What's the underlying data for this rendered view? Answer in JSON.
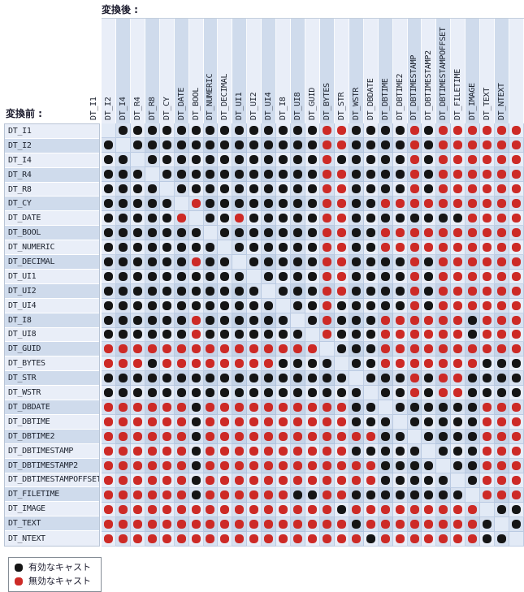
{
  "labels": {
    "after": "変換後 :",
    "before": "変換前 :"
  },
  "legend": {
    "valid": "有効なキャスト",
    "invalid": "無効なキャスト"
  },
  "colors": {
    "valid_dot": "#151515",
    "invalid_dot": "#cd2a26",
    "stripe_light": "#e9eef8",
    "stripe_dark": "#cfdbec",
    "diagonal_cell": "#e2eaf6"
  },
  "chart_data": {
    "type": "heatmap",
    "x_axis_label": "変換後 :",
    "y_axis_label": "変換前 :",
    "legend_entries": [
      {
        "symbol": "black-dot",
        "label": "有効なキャスト"
      },
      {
        "symbol": "red-dot",
        "label": "無効なキャスト"
      }
    ],
    "cell_encoding": {
      "b": "有効なキャスト (valid cast, black dot)",
      "r": "無効なキャスト (invalid cast, red dot)",
      "-": "diagonal, same type, empty"
    },
    "categories": [
      "DT_I1",
      "DT_I2",
      "DT_I4",
      "DT_R4",
      "DT_R8",
      "DT_CY",
      "DT_DATE",
      "DT_BOOL",
      "DT_NUMERIC",
      "DT_DECIMAL",
      "DT_UI1",
      "DT_UI2",
      "DT_UI4",
      "DT_I8",
      "DT_UI8",
      "DT_GUID",
      "DT_BYTES",
      "DT_STR",
      "DT_WSTR",
      "DT_DBDATE",
      "DT_DBTIME",
      "DT_DBTIME2",
      "DT_DBTIMESTAMP",
      "DT_DBTIMESTAMP2",
      "DT_DBTIMESTAMPOFFSET",
      "DT_FILETIME",
      "DT_IMAGE",
      "DT_TEXT",
      "DT_NTEXT"
    ],
    "rows": [
      "-bbbbbbbbbbbbbbrrbbbbrbrrrrrr",
      "b-bbbbbbbbbbbbbrrbbbbrbrrrrrr",
      "bb-bbbbbbbbbbbbrbbbbbrbrrrrrr",
      "bbb-bbbbbbbbbbbrrbbbbrbrrrrrr",
      "bbbb-bbbbbbbbbbrrbbbbrbrrrrrr",
      "bbbbb-rbbbbbbbbrrbbrrrrrrrrrr",
      "bbbbbr-bbrbbbbbrrbbbbbbbbrrrr",
      "bbbbbbb-bbbbbbbrrbbrrrrrrrrrr",
      "bbbbbbbb-bbbbbbrrbbrrrrrrrrrr",
      "bbbbbbrbb-bbbbbrrbbbbrbrrrrrr",
      "bbbbbbbbbb-bbbbrrbbbbrbrrrrrr",
      "bbbbbbbbbbb-bbbrrbbbbrbrrrrrr",
      "bbbbbbbbbbbb-bbrbbbbbrbrrrrrr",
      "bbbbbbrbbbbbb-brbbbrrrrrrbrrr",
      "bbbbbbrbbbbbbb-rbbbrrrrrrbrrr",
      "rrrrrrrrrrrrrrr-bbbrrrrrrrrrr",
      "rrrbrrrrrrrrbbbb-bbrrrrrrrbbb",
      "bbbbbbbbbbbbbbbbb-bbbrbrrbbbb",
      "bbbbbbbbbbbbbbbbbb-bbrbrrbbbb",
      "rrrrrrbrrrrrrrrrrbb-bbbbbbrrr",
      "rrrrrrbrrrrrrrrrrbbb-bbbbbrrr",
      "rrrrrrbrrrrrrrrrrrrbb-bbbbrrr",
      "rrrrrrbrrrrrrrrrrbbbbb-bbbrrr",
      "rrrrrrbrrrrrrrrrrrrbbbb-bbrrr",
      "rrrrrrbrrrrrrrrrrrrbbbbb-brrr",
      "rrrrrrbrrrrrrbbrrbbbbbbbb-rrr",
      "rrrrrrrrrrrrrrrrbrrrrrrrrr-bb",
      "rrrrrrrrrrrrrrrrrbrrrrrrrrb-b",
      "rrrrrrrrrrrrrrrrrrbrrrrrrrbb-"
    ]
  }
}
